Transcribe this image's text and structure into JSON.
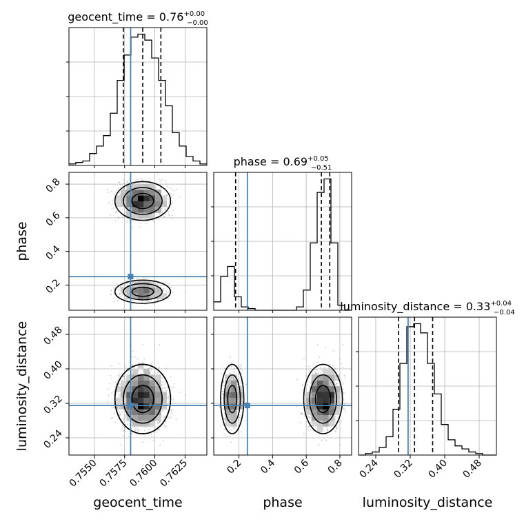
{
  "chart_data": {
    "type": "scatter",
    "subtype": "corner-plot",
    "parameters": [
      "geocent_time",
      "phase",
      "luminosity_distance"
    ],
    "axis_labels": {
      "geocent_time": "geocent_time",
      "phase": "phase",
      "luminosity_distance": "luminosity_distance"
    },
    "titles": [
      {
        "param": "geocent_time",
        "prefix": "geocent_time = ",
        "median": "0.76",
        "plus": "+0.00",
        "minus": "−0.00"
      },
      {
        "param": "phase",
        "prefix": "phase = ",
        "median": "0.69",
        "plus": "+0.05",
        "minus": "−0.51"
      },
      {
        "param": "luminosity_distance",
        "prefix": "luminosity_distance = ",
        "median": "0.33",
        "plus": "+0.04",
        "minus": "−0.04"
      }
    ],
    "ranges": {
      "geocent_time": [
        0.7529,
        0.7643
      ],
      "phase": [
        0.05,
        0.87
      ],
      "luminosity_distance": [
        0.2,
        0.52
      ]
    },
    "ticks": {
      "geocent_time": {
        "values": [
          0.755,
          0.7575,
          0.76,
          0.7625
        ],
        "labels": [
          "0.7550",
          "0.7575",
          "0.7600",
          "0.7625"
        ]
      },
      "phase_x": {
        "values": [
          0.2,
          0.4,
          0.6,
          0.8
        ],
        "labels": [
          "0.2",
          "0.4",
          "0.6",
          "0.8"
        ]
      },
      "phase_y": {
        "values": [
          0.2,
          0.4,
          0.6,
          0.8
        ],
        "labels": [
          "0.2",
          "0.4",
          "0.6",
          "0.8"
        ]
      },
      "luminosity_distance": {
        "values": [
          0.24,
          0.32,
          0.4,
          0.48
        ],
        "labels": [
          "0.24",
          "0.32",
          "0.40",
          "0.48"
        ]
      }
    },
    "truths": {
      "geocent_time": 0.758,
      "phase": 0.25,
      "luminosity_distance": 0.315
    },
    "quantiles": {
      "geocent_time": [
        0.7574,
        0.759,
        0.7605
      ],
      "phase": [
        0.18,
        0.69,
        0.74
      ],
      "luminosity_distance": [
        0.293,
        0.33,
        0.372
      ]
    },
    "histograms": {
      "geocent_time": {
        "edges": [
          0.7529,
          0.75347,
          0.75404,
          0.75461,
          0.75518,
          0.75575,
          0.75632,
          0.75689,
          0.75746,
          0.75803,
          0.7586,
          0.75917,
          0.75974,
          0.76031,
          0.76088,
          0.76145,
          0.76202,
          0.76259,
          0.76316,
          0.76373,
          0.7643
        ],
        "counts": [
          1,
          2,
          3,
          8,
          13,
          20,
          35,
          57,
          74,
          86,
          88,
          84,
          72,
          57,
          40,
          22,
          13,
          6,
          3,
          1
        ]
      },
      "phase": {
        "edges": [
          0.05,
          0.091,
          0.132,
          0.173,
          0.214,
          0.255,
          0.296,
          0.337,
          0.378,
          0.419,
          0.46,
          0.501,
          0.542,
          0.583,
          0.624,
          0.665,
          0.706,
          0.747,
          0.788,
          0.829,
          0.87
        ],
        "counts": [
          5,
          20,
          26,
          8,
          2,
          1,
          0,
          0,
          0,
          0,
          0,
          0,
          2,
          12,
          40,
          70,
          78,
          40,
          3,
          0
        ]
      },
      "luminosity_distance": {
        "edges": [
          0.2,
          0.216,
          0.232,
          0.248,
          0.264,
          0.28,
          0.296,
          0.312,
          0.328,
          0.344,
          0.36,
          0.376,
          0.392,
          0.408,
          0.424,
          0.44,
          0.456,
          0.472,
          0.488,
          0.504,
          0.52
        ],
        "counts": [
          0,
          1,
          2,
          5,
          12,
          30,
          60,
          84,
          86,
          80,
          60,
          40,
          20,
          10,
          6,
          4,
          2,
          1,
          0,
          0
        ]
      }
    },
    "modes": [
      {
        "time": 0.759,
        "phase": 0.7,
        "dist": 0.33,
        "st": 0.001,
        "sp": 0.05,
        "sd": 0.035,
        "w": 0.72
      },
      {
        "time": 0.759,
        "phase": 0.16,
        "dist": 0.33,
        "st": 0.001,
        "sp": 0.03,
        "sd": 0.035,
        "w": 0.28
      }
    ],
    "truth_color": "#4682b4",
    "grid": true
  }
}
